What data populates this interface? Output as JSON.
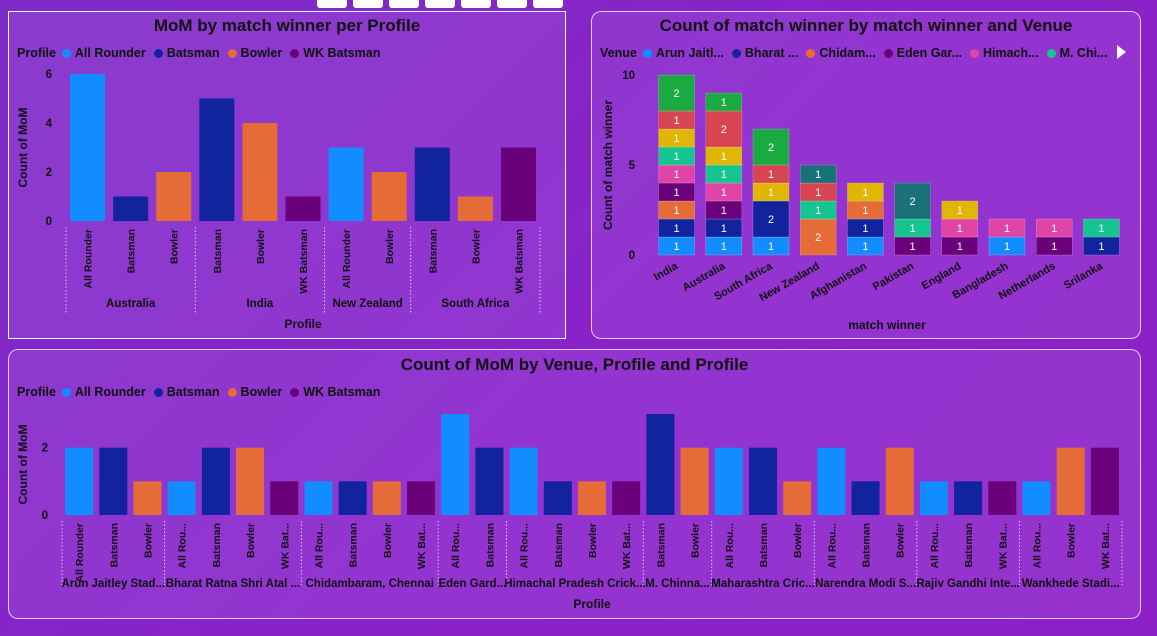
{
  "colors": {
    "All Rounder": "#118dff",
    "Batsman": "#12239e",
    "Bowler": "#e66c37",
    "WK Batsman": "#6b007b",
    "venues": [
      "#118dff",
      "#12239e",
      "#e66c37",
      "#6b007b",
      "#e044a7",
      "#1aab40",
      "#d64550",
      "#197278",
      "#e0b600",
      "#15c48e"
    ]
  },
  "toolbar": {
    "icons": [
      "pin-icon",
      "drill-down-icon",
      "expand-all-icon",
      "expand-level-icon",
      "filter-icon",
      "focus-mode-icon",
      "more-options-icon"
    ]
  },
  "panel1": {
    "title": "MoM by match winner per Profile",
    "legend_title": "Profile",
    "legend_items": [
      "All Rounder",
      "Batsman",
      "Bowler",
      "WK Batsman"
    ],
    "chart_data": {
      "type": "bar",
      "title": "MoM by match winner per Profile",
      "xlabel": "Profile",
      "ylabel": "Count of MoM",
      "ylim": [
        0,
        6
      ],
      "yticks": [
        0,
        2,
        4,
        6
      ],
      "groups": [
        {
          "name": "Australia",
          "bars": [
            {
              "profile": "All Rounder",
              "value": 6
            },
            {
              "profile": "Batsman",
              "value": 1
            },
            {
              "profile": "Bowler",
              "value": 2
            }
          ]
        },
        {
          "name": "India",
          "bars": [
            {
              "profile": "Batsman",
              "value": 5
            },
            {
              "profile": "Bowler",
              "value": 4
            },
            {
              "profile": "WK Batsman",
              "value": 1
            }
          ]
        },
        {
          "name": "New Zealand",
          "bars": [
            {
              "profile": "All Rounder",
              "value": 3
            },
            {
              "profile": "Bowler",
              "value": 2
            }
          ]
        },
        {
          "name": "South Africa",
          "bars": [
            {
              "profile": "Batsman",
              "value": 3
            },
            {
              "profile": "Bowler",
              "value": 1
            },
            {
              "profile": "WK Batsman",
              "value": 3
            }
          ]
        }
      ]
    }
  },
  "panel2": {
    "title": "Count of match winner by match winner and Venue",
    "legend_title": "Venue",
    "legend_items": [
      "Arun Jaitl...",
      "Bharat ...",
      "Chidam...",
      "Eden Gar...",
      "Himach...",
      "M. Chi..."
    ],
    "chart_data": {
      "type": "bar",
      "stacked": true,
      "title": "Count of match winner by match winner and Venue",
      "xlabel": "match winner",
      "ylabel": "Count of match winner",
      "ylim": [
        0,
        10
      ],
      "yticks": [
        0,
        5,
        10
      ],
      "categories": [
        "India",
        "Australia",
        "South Africa",
        "New Zealand",
        "Afghanistan",
        "Pakistan",
        "England",
        "Bangladesh",
        "Netherlands",
        "Srilanka"
      ],
      "stacks": [
        [
          {
            "venue": 0,
            "value": 1
          },
          {
            "venue": 1,
            "value": 1
          },
          {
            "venue": 2,
            "value": 1
          },
          {
            "venue": 3,
            "value": 1
          },
          {
            "venue": 4,
            "value": 1
          },
          {
            "venue": 9,
            "value": 1
          },
          {
            "venue": 8,
            "value": 1
          },
          {
            "venue": 6,
            "value": 1
          },
          {
            "venue": 5,
            "value": 2
          }
        ],
        [
          {
            "venue": 0,
            "value": 1
          },
          {
            "venue": 1,
            "value": 1
          },
          {
            "venue": 3,
            "value": 1
          },
          {
            "venue": 4,
            "value": 1
          },
          {
            "venue": 9,
            "value": 1
          },
          {
            "venue": 8,
            "value": 1
          },
          {
            "venue": 6,
            "value": 2
          },
          {
            "venue": 5,
            "value": 1
          }
        ],
        [
          {
            "venue": 0,
            "value": 1
          },
          {
            "venue": 1,
            "value": 2
          },
          {
            "venue": 8,
            "value": 1
          },
          {
            "venue": 6,
            "value": 1
          },
          {
            "venue": 5,
            "value": 2
          }
        ],
        [
          {
            "venue": 2,
            "value": 2
          },
          {
            "venue": 9,
            "value": 1
          },
          {
            "venue": 6,
            "value": 1
          },
          {
            "venue": 7,
            "value": 1
          }
        ],
        [
          {
            "venue": 0,
            "value": 1
          },
          {
            "venue": 1,
            "value": 1
          },
          {
            "venue": 2,
            "value": 1
          },
          {
            "venue": 8,
            "value": 1
          }
        ],
        [
          {
            "venue": 3,
            "value": 1
          },
          {
            "venue": 9,
            "value": 1
          },
          {
            "venue": 7,
            "value": 2
          }
        ],
        [
          {
            "venue": 3,
            "value": 1
          },
          {
            "venue": 4,
            "value": 1
          },
          {
            "venue": 8,
            "value": 1
          }
        ],
        [
          {
            "venue": 0,
            "value": 1
          },
          {
            "venue": 4,
            "value": 1
          }
        ],
        [
          {
            "venue": 3,
            "value": 1
          },
          {
            "venue": 4,
            "value": 1
          }
        ],
        [
          {
            "venue": 1,
            "value": 1
          },
          {
            "venue": 9,
            "value": 1
          }
        ]
      ]
    }
  },
  "panel3": {
    "title": "Count of MoM by Venue, Profile and Profile",
    "legend_title": "Profile",
    "legend_items": [
      "All Rounder",
      "Batsman",
      "Bowler",
      "WK Batsman"
    ],
    "chart_data": {
      "type": "bar",
      "title": "Count of MoM by Venue, Profile and Profile",
      "xlabel": "Profile",
      "ylabel": "Count of MoM",
      "ylim": [
        0,
        3
      ],
      "yticks": [
        0,
        2
      ],
      "groups": [
        {
          "name": "Arun Jaitley Stad...",
          "bars": [
            {
              "profile": "All Rounder",
              "label": "All Rounder",
              "value": 2
            },
            {
              "profile": "Batsman",
              "label": "Batsman",
              "value": 2
            },
            {
              "profile": "Bowler",
              "label": "Bowler",
              "value": 1
            }
          ]
        },
        {
          "name": "Bharat Ratna Shri Atal ...",
          "bars": [
            {
              "profile": "All Rounder",
              "label": "All Rou...",
              "value": 1
            },
            {
              "profile": "Batsman",
              "label": "Batsman",
              "value": 2
            },
            {
              "profile": "Bowler",
              "label": "Bowler",
              "value": 2
            },
            {
              "profile": "WK Batsman",
              "label": "WK Bat...",
              "value": 1
            }
          ]
        },
        {
          "name": "Chidambaram, Chennai",
          "bars": [
            {
              "profile": "All Rounder",
              "label": "All Rou...",
              "value": 1
            },
            {
              "profile": "Batsman",
              "label": "Batsman",
              "value": 1
            },
            {
              "profile": "Bowler",
              "label": "Bowler",
              "value": 1
            },
            {
              "profile": "WK Batsman",
              "label": "WK Bat...",
              "value": 1
            }
          ]
        },
        {
          "name": "Eden Gard...",
          "bars": [
            {
              "profile": "All Rounder",
              "label": "All Rou...",
              "value": 3
            },
            {
              "profile": "Batsman",
              "label": "Batsman",
              "value": 2
            }
          ]
        },
        {
          "name": "Himachal Pradesh Crick...",
          "bars": [
            {
              "profile": "All Rounder",
              "label": "All Rou...",
              "value": 2
            },
            {
              "profile": "Batsman",
              "label": "Batsman",
              "value": 1
            },
            {
              "profile": "Bowler",
              "label": "Bowler",
              "value": 1
            },
            {
              "profile": "WK Batsman",
              "label": "WK Bat...",
              "value": 1
            }
          ]
        },
        {
          "name": "M. Chinna...",
          "bars": [
            {
              "profile": "Batsman",
              "label": "Batsman",
              "value": 3
            },
            {
              "profile": "Bowler",
              "label": "Bowler",
              "value": 2
            }
          ]
        },
        {
          "name": "Maharashtra Cric...",
          "bars": [
            {
              "profile": "All Rounder",
              "label": "All Rou...",
              "value": 2
            },
            {
              "profile": "Batsman",
              "label": "Batsman",
              "value": 2
            },
            {
              "profile": "Bowler",
              "label": "Bowler",
              "value": 1
            }
          ]
        },
        {
          "name": "Narendra Modi S...",
          "bars": [
            {
              "profile": "All Rounder",
              "label": "All Rou...",
              "value": 2
            },
            {
              "profile": "Batsman",
              "label": "Batsman",
              "value": 1
            },
            {
              "profile": "Bowler",
              "label": "Bowler",
              "value": 2
            }
          ]
        },
        {
          "name": "Rajiv Gandhi Inte...",
          "bars": [
            {
              "profile": "All Rounder",
              "label": "All Rou...",
              "value": 1
            },
            {
              "profile": "Batsman",
              "label": "Batsman",
              "value": 1
            },
            {
              "profile": "WK Batsman",
              "label": "WK Bat...",
              "value": 1
            }
          ]
        },
        {
          "name": "Wankhede Stadi...",
          "bars": [
            {
              "profile": "All Rounder",
              "label": "All Rou...",
              "value": 1
            },
            {
              "profile": "Bowler",
              "label": "Bowler",
              "value": 2
            },
            {
              "profile": "WK Batsman",
              "label": "WK Bat...",
              "value": 2
            }
          ]
        }
      ]
    }
  }
}
